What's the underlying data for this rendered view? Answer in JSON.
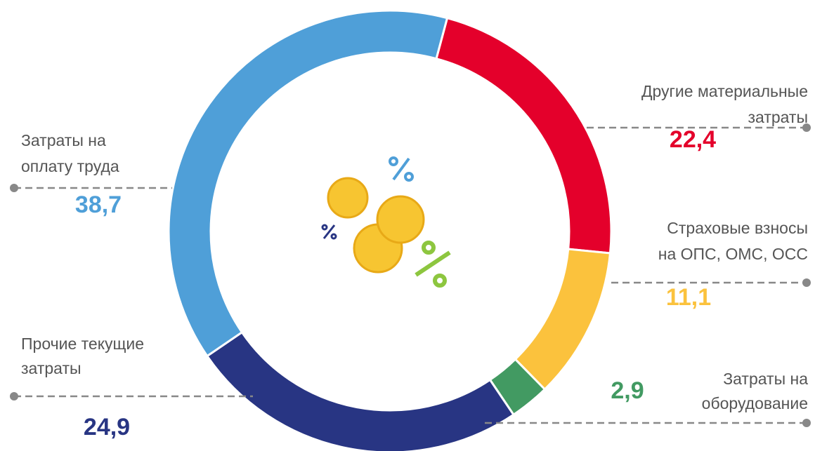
{
  "chart_data": {
    "type": "donut",
    "categories": [
      [
        "Другие материальные",
        "затраты"
      ],
      [
        "Страховые взносы",
        "на ОПС, ОМС, ОСС"
      ],
      [
        "Затраты на",
        "оборудование"
      ],
      [
        "Прочие текущие",
        "затраты"
      ],
      [
        "Затраты на",
        "оплату труда"
      ]
    ],
    "values": [
      22.4,
      11.1,
      2.9,
      24.9,
      38.7
    ],
    "value_labels": [
      "22,4",
      "11,1",
      "2,9",
      "24,9",
      "38,7"
    ],
    "colors": [
      "#e4002b",
      "#fbc23d",
      "#429a62",
      "#283583",
      "#4f9fd8"
    ]
  }
}
